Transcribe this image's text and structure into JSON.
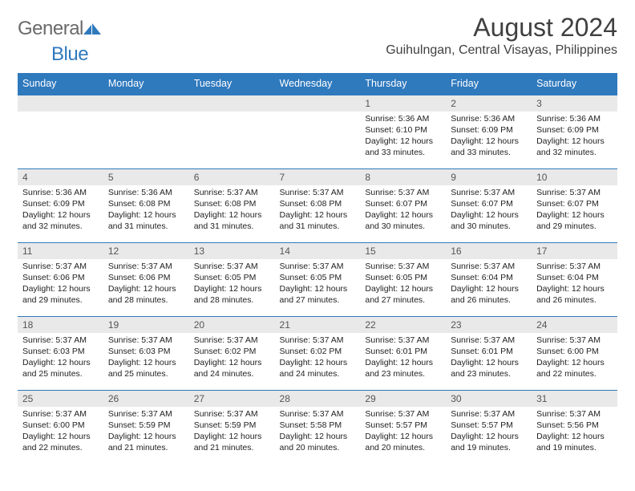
{
  "brand": {
    "word1": "General",
    "word2": "Blue"
  },
  "header": {
    "title": "August 2024",
    "location": "Guihulngan, Central Visayas, Philippines"
  },
  "calendar": {
    "type": "table",
    "header_bg": "#2f79bd",
    "header_fg": "#ffffff",
    "daynum_bg": "#e9e9e9",
    "rule_color": "#2f79bd",
    "columns": [
      "Sunday",
      "Monday",
      "Tuesday",
      "Wednesday",
      "Thursday",
      "Friday",
      "Saturday"
    ],
    "weeks": [
      [
        null,
        null,
        null,
        null,
        {
          "n": "1",
          "sr": "Sunrise: 5:36 AM",
          "ss": "Sunset: 6:10 PM",
          "d1": "Daylight: 12 hours",
          "d2": "and 33 minutes."
        },
        {
          "n": "2",
          "sr": "Sunrise: 5:36 AM",
          "ss": "Sunset: 6:09 PM",
          "d1": "Daylight: 12 hours",
          "d2": "and 33 minutes."
        },
        {
          "n": "3",
          "sr": "Sunrise: 5:36 AM",
          "ss": "Sunset: 6:09 PM",
          "d1": "Daylight: 12 hours",
          "d2": "and 32 minutes."
        }
      ],
      [
        {
          "n": "4",
          "sr": "Sunrise: 5:36 AM",
          "ss": "Sunset: 6:09 PM",
          "d1": "Daylight: 12 hours",
          "d2": "and 32 minutes."
        },
        {
          "n": "5",
          "sr": "Sunrise: 5:36 AM",
          "ss": "Sunset: 6:08 PM",
          "d1": "Daylight: 12 hours",
          "d2": "and 31 minutes."
        },
        {
          "n": "6",
          "sr": "Sunrise: 5:37 AM",
          "ss": "Sunset: 6:08 PM",
          "d1": "Daylight: 12 hours",
          "d2": "and 31 minutes."
        },
        {
          "n": "7",
          "sr": "Sunrise: 5:37 AM",
          "ss": "Sunset: 6:08 PM",
          "d1": "Daylight: 12 hours",
          "d2": "and 31 minutes."
        },
        {
          "n": "8",
          "sr": "Sunrise: 5:37 AM",
          "ss": "Sunset: 6:07 PM",
          "d1": "Daylight: 12 hours",
          "d2": "and 30 minutes."
        },
        {
          "n": "9",
          "sr": "Sunrise: 5:37 AM",
          "ss": "Sunset: 6:07 PM",
          "d1": "Daylight: 12 hours",
          "d2": "and 30 minutes."
        },
        {
          "n": "10",
          "sr": "Sunrise: 5:37 AM",
          "ss": "Sunset: 6:07 PM",
          "d1": "Daylight: 12 hours",
          "d2": "and 29 minutes."
        }
      ],
      [
        {
          "n": "11",
          "sr": "Sunrise: 5:37 AM",
          "ss": "Sunset: 6:06 PM",
          "d1": "Daylight: 12 hours",
          "d2": "and 29 minutes."
        },
        {
          "n": "12",
          "sr": "Sunrise: 5:37 AM",
          "ss": "Sunset: 6:06 PM",
          "d1": "Daylight: 12 hours",
          "d2": "and 28 minutes."
        },
        {
          "n": "13",
          "sr": "Sunrise: 5:37 AM",
          "ss": "Sunset: 6:05 PM",
          "d1": "Daylight: 12 hours",
          "d2": "and 28 minutes."
        },
        {
          "n": "14",
          "sr": "Sunrise: 5:37 AM",
          "ss": "Sunset: 6:05 PM",
          "d1": "Daylight: 12 hours",
          "d2": "and 27 minutes."
        },
        {
          "n": "15",
          "sr": "Sunrise: 5:37 AM",
          "ss": "Sunset: 6:05 PM",
          "d1": "Daylight: 12 hours",
          "d2": "and 27 minutes."
        },
        {
          "n": "16",
          "sr": "Sunrise: 5:37 AM",
          "ss": "Sunset: 6:04 PM",
          "d1": "Daylight: 12 hours",
          "d2": "and 26 minutes."
        },
        {
          "n": "17",
          "sr": "Sunrise: 5:37 AM",
          "ss": "Sunset: 6:04 PM",
          "d1": "Daylight: 12 hours",
          "d2": "and 26 minutes."
        }
      ],
      [
        {
          "n": "18",
          "sr": "Sunrise: 5:37 AM",
          "ss": "Sunset: 6:03 PM",
          "d1": "Daylight: 12 hours",
          "d2": "and 25 minutes."
        },
        {
          "n": "19",
          "sr": "Sunrise: 5:37 AM",
          "ss": "Sunset: 6:03 PM",
          "d1": "Daylight: 12 hours",
          "d2": "and 25 minutes."
        },
        {
          "n": "20",
          "sr": "Sunrise: 5:37 AM",
          "ss": "Sunset: 6:02 PM",
          "d1": "Daylight: 12 hours",
          "d2": "and 24 minutes."
        },
        {
          "n": "21",
          "sr": "Sunrise: 5:37 AM",
          "ss": "Sunset: 6:02 PM",
          "d1": "Daylight: 12 hours",
          "d2": "and 24 minutes."
        },
        {
          "n": "22",
          "sr": "Sunrise: 5:37 AM",
          "ss": "Sunset: 6:01 PM",
          "d1": "Daylight: 12 hours",
          "d2": "and 23 minutes."
        },
        {
          "n": "23",
          "sr": "Sunrise: 5:37 AM",
          "ss": "Sunset: 6:01 PM",
          "d1": "Daylight: 12 hours",
          "d2": "and 23 minutes."
        },
        {
          "n": "24",
          "sr": "Sunrise: 5:37 AM",
          "ss": "Sunset: 6:00 PM",
          "d1": "Daylight: 12 hours",
          "d2": "and 22 minutes."
        }
      ],
      [
        {
          "n": "25",
          "sr": "Sunrise: 5:37 AM",
          "ss": "Sunset: 6:00 PM",
          "d1": "Daylight: 12 hours",
          "d2": "and 22 minutes."
        },
        {
          "n": "26",
          "sr": "Sunrise: 5:37 AM",
          "ss": "Sunset: 5:59 PM",
          "d1": "Daylight: 12 hours",
          "d2": "and 21 minutes."
        },
        {
          "n": "27",
          "sr": "Sunrise: 5:37 AM",
          "ss": "Sunset: 5:59 PM",
          "d1": "Daylight: 12 hours",
          "d2": "and 21 minutes."
        },
        {
          "n": "28",
          "sr": "Sunrise: 5:37 AM",
          "ss": "Sunset: 5:58 PM",
          "d1": "Daylight: 12 hours",
          "d2": "and 20 minutes."
        },
        {
          "n": "29",
          "sr": "Sunrise: 5:37 AM",
          "ss": "Sunset: 5:57 PM",
          "d1": "Daylight: 12 hours",
          "d2": "and 20 minutes."
        },
        {
          "n": "30",
          "sr": "Sunrise: 5:37 AM",
          "ss": "Sunset: 5:57 PM",
          "d1": "Daylight: 12 hours",
          "d2": "and 19 minutes."
        },
        {
          "n": "31",
          "sr": "Sunrise: 5:37 AM",
          "ss": "Sunset: 5:56 PM",
          "d1": "Daylight: 12 hours",
          "d2": "and 19 minutes."
        }
      ]
    ]
  }
}
